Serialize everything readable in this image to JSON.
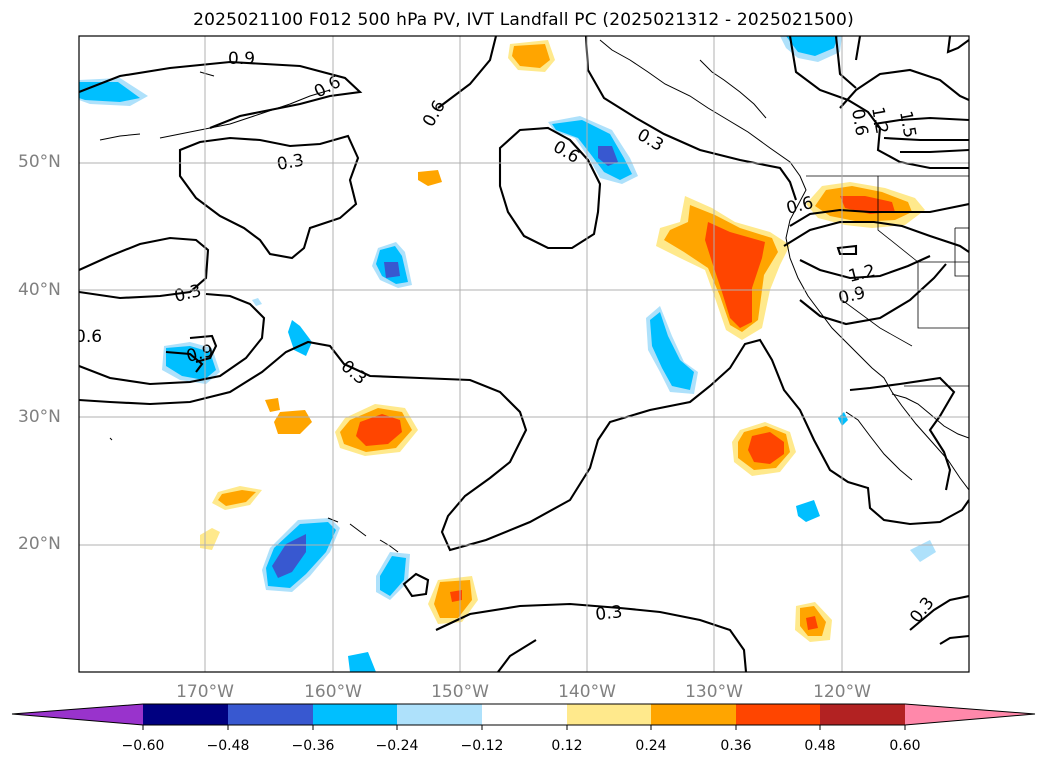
{
  "title": "2025021100 F012 500 hPa PV, IVT Landfall PC (2025021312 - 2025021500)",
  "lat_labels": [
    "50°N",
    "40°N",
    "30°N",
    "20°N"
  ],
  "lon_labels": [
    "170°W",
    "160°W",
    "150°W",
    "140°W",
    "130°W",
    "120°W"
  ],
  "contour_labels": [
    "0.9",
    "0.6",
    "0.6",
    "0.3",
    "0.6",
    "0.3",
    "0.3",
    "0.9",
    "0.3",
    "0.6",
    "1.2",
    "0.9",
    "0.3",
    "0.3",
    "0.6",
    "1.2",
    "1.5",
    "0.6",
    "0.9"
  ],
  "colorbar": {
    "tick_labels": [
      "−0.60",
      "−0.48",
      "−0.36",
      "−0.24",
      "−0.12",
      "0.12",
      "0.24",
      "0.36",
      "0.48",
      "0.60"
    ],
    "colors": [
      "#9933cc",
      "#000080",
      "#3858d0",
      "#00bfff",
      "#aee1fb",
      "#ffffff",
      "#ffe98c",
      "#ffa500",
      "#ff4500",
      "#b22222",
      "#ff88aa"
    ]
  },
  "palette": {
    "orange": "#ffa500",
    "red_orange": "#ff4500",
    "yellow": "#ffe98c",
    "light_blue": "#aee1fb",
    "blue": "#00bfff",
    "royal_blue": "#3858d0"
  }
}
